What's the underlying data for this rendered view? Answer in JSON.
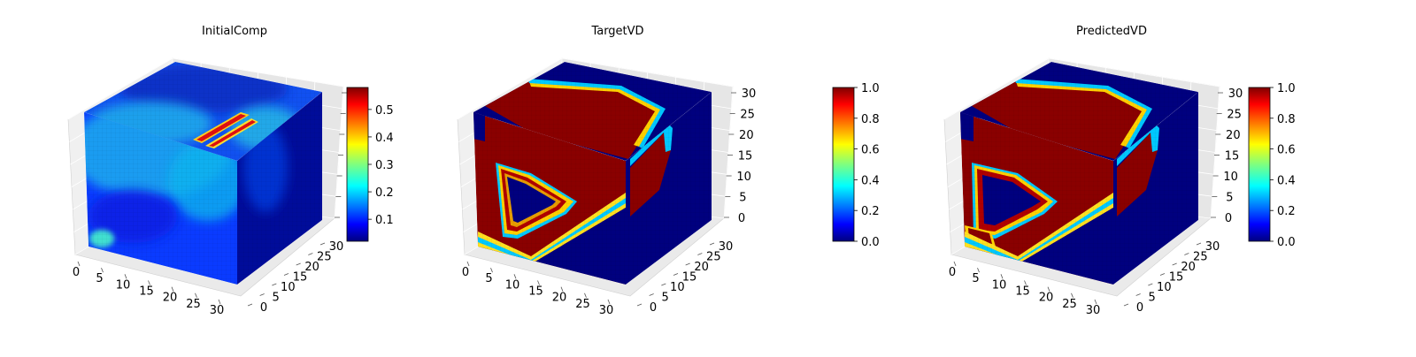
{
  "chart_data": [
    {
      "type": "heatmap",
      "title": "InitialComp",
      "colormap": "jet",
      "x_ticks": [
        "0",
        "5",
        "10",
        "15",
        "20",
        "25",
        "30"
      ],
      "y_ticks": [
        "0",
        "5",
        "10",
        "15",
        "20",
        "25",
        "30"
      ],
      "z_ticks": [
        "",
        "",
        "",
        "",
        "",
        "",
        ""
      ],
      "colorbar": {
        "min": 0.02,
        "max": 0.58,
        "ticks": [
          "0.1",
          "0.2",
          "0.3",
          "0.4",
          "0.5"
        ],
        "tick_values": [
          0.1,
          0.2,
          0.3,
          0.4,
          0.5
        ]
      }
    },
    {
      "type": "heatmap",
      "title": "TargetVD",
      "colormap": "jet",
      "x_ticks": [
        "0",
        "5",
        "10",
        "15",
        "20",
        "25",
        "30"
      ],
      "y_ticks": [
        "0",
        "5",
        "10",
        "15",
        "20",
        "25",
        "30"
      ],
      "z_ticks": [
        "0",
        "5",
        "10",
        "15",
        "20",
        "25",
        "30"
      ],
      "colorbar": {
        "min": 0.0,
        "max": 1.0,
        "ticks": [
          "0.0",
          "0.2",
          "0.4",
          "0.6",
          "0.8",
          "1.0"
        ],
        "tick_values": [
          0,
          0.2,
          0.4,
          0.6,
          0.8,
          1.0
        ]
      }
    },
    {
      "type": "heatmap",
      "title": "PredictedVD",
      "colormap": "jet",
      "x_ticks": [
        "0",
        "5",
        "10",
        "15",
        "20",
        "25",
        "30"
      ],
      "y_ticks": [
        "0",
        "5",
        "10",
        "15",
        "20",
        "25",
        "30"
      ],
      "z_ticks": [
        "0",
        "5",
        "10",
        "15",
        "20",
        "25",
        "30"
      ],
      "colorbar": {
        "min": 0.0,
        "max": 1.0,
        "ticks": [
          "0.0",
          "0.2",
          "0.4",
          "0.6",
          "0.8",
          "1.0"
        ],
        "tick_values": [
          0,
          0.2,
          0.4,
          0.6,
          0.8,
          1.0
        ]
      }
    }
  ],
  "colors": {
    "background": "#ffffff",
    "pane": "#f2f2f2",
    "grid": "#d9d9d9",
    "dark_blue": "#00007f",
    "dark_red": "#7f0000"
  }
}
